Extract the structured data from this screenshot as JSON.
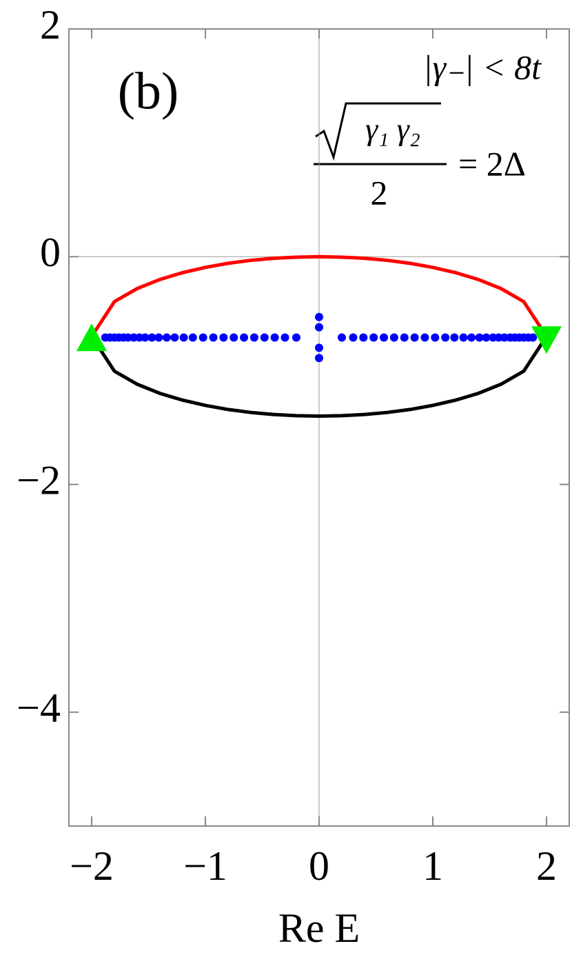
{
  "chart_data": {
    "type": "line",
    "annotations": {
      "panel": "(b)",
      "condition": "|γ₋| < 8t",
      "numerator": "γ₁ γ₂",
      "denominator": "2",
      "rhs": "= 2Δ"
    },
    "x_label": "Re E",
    "xlim": [
      -2.2,
      2.2
    ],
    "ylim": [
      -5,
      2
    ],
    "xticks": [
      {
        "value": -2,
        "label": "−2"
      },
      {
        "value": -1,
        "label": "−1"
      },
      0,
      1,
      2
    ],
    "yticks": [
      {
        "value": -4,
        "label": "−4"
      },
      {
        "value": -2,
        "label": "−2"
      },
      0,
      2
    ],
    "series": [
      {
        "kind": "line",
        "color": "#ff0000",
        "x": [
          -2,
          -1.8,
          -1.6,
          -1.4,
          -1.2,
          -1,
          -0.8,
          -0.6,
          -0.4,
          -0.2,
          0,
          0.2,
          0.4,
          0.6,
          0.8,
          1,
          1.2,
          1.4,
          1.6,
          1.8,
          2
        ],
        "values": [
          -0.7,
          -0.395,
          -0.28,
          -0.2,
          -0.14,
          -0.094,
          -0.058,
          -0.032,
          -0.014,
          -0.004,
          0,
          -0.004,
          -0.014,
          -0.032,
          -0.058,
          -0.094,
          -0.14,
          -0.2,
          -0.28,
          -0.395,
          -0.7
        ]
      },
      {
        "kind": "line",
        "color": "#000000",
        "x": [
          -2,
          -1.8,
          -1.6,
          -1.4,
          -1.2,
          -1,
          -0.8,
          -0.6,
          -0.4,
          -0.2,
          0,
          0.2,
          0.4,
          0.6,
          0.8,
          1,
          1.2,
          1.4,
          1.6,
          1.8,
          2
        ],
        "values": [
          -0.7,
          -1.005,
          -1.12,
          -1.2,
          -1.26,
          -1.306,
          -1.342,
          -1.368,
          -1.386,
          -1.396,
          -1.4,
          -1.396,
          -1.386,
          -1.368,
          -1.342,
          -1.306,
          -1.26,
          -1.2,
          -1.12,
          -1.005,
          -0.7
        ]
      },
      {
        "kind": "scatter",
        "color": "#0000ff",
        "x": [
          -1.88,
          -1.84,
          -1.8,
          -1.76,
          -1.72,
          -1.68,
          -1.63,
          -1.58,
          -1.53,
          -1.47,
          -1.41,
          -1.34,
          -1.27,
          -1.19,
          -1.11,
          -1.02,
          -0.93,
          -0.84,
          -0.75,
          -0.66,
          -0.57,
          -0.48,
          -0.39,
          -0.3,
          -0.2,
          0,
          0,
          0,
          0,
          0.2,
          0.3,
          0.39,
          0.48,
          0.57,
          0.66,
          0.75,
          0.84,
          0.93,
          1.02,
          1.11,
          1.19,
          1.27,
          1.34,
          1.41,
          1.47,
          1.53,
          1.58,
          1.63,
          1.68,
          1.72,
          1.76,
          1.8,
          1.84,
          1.88
        ],
        "values": [
          -0.71,
          -0.71,
          -0.71,
          -0.71,
          -0.71,
          -0.71,
          -0.71,
          -0.71,
          -0.71,
          -0.71,
          -0.71,
          -0.71,
          -0.71,
          -0.71,
          -0.71,
          -0.71,
          -0.71,
          -0.71,
          -0.71,
          -0.71,
          -0.71,
          -0.71,
          -0.71,
          -0.71,
          -0.71,
          -0.53,
          -0.62,
          -0.8,
          -0.89,
          -0.71,
          -0.71,
          -0.71,
          -0.71,
          -0.71,
          -0.71,
          -0.71,
          -0.71,
          -0.71,
          -0.71,
          -0.71,
          -0.71,
          -0.71,
          -0.71,
          -0.71,
          -0.71,
          -0.71,
          -0.71,
          -0.71,
          -0.71,
          -0.71,
          -0.71,
          -0.71,
          -0.71,
          -0.71
        ]
      },
      {
        "kind": "triangle-up",
        "color": "#00ee00",
        "x": [
          -2
        ],
        "values": [
          -0.72
        ]
      },
      {
        "kind": "triangle-down",
        "color": "#00ee00",
        "x": [
          2
        ],
        "values": [
          -0.72
        ]
      }
    ]
  }
}
